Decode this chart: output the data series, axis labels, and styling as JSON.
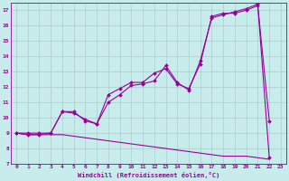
{
  "xlabel": "Windchill (Refroidissement éolien,°C)",
  "xlim": [
    -0.5,
    23.5
  ],
  "ylim": [
    7,
    17.5
  ],
  "yticks": [
    7,
    8,
    9,
    10,
    11,
    12,
    13,
    14,
    15,
    16,
    17
  ],
  "xticks": [
    0,
    1,
    2,
    3,
    4,
    5,
    6,
    7,
    8,
    9,
    10,
    11,
    12,
    13,
    14,
    15,
    16,
    17,
    18,
    19,
    20,
    21,
    22,
    23
  ],
  "bg_color": "#c8ecec",
  "grid_color": "#aacccc",
  "line_color": "#990099",
  "line1_x": [
    0,
    1,
    2,
    3,
    4,
    5,
    6,
    7,
    8,
    9,
    10,
    11,
    12,
    13,
    14,
    15,
    16,
    17,
    18,
    19,
    20,
    21,
    22
  ],
  "line1_y": [
    9.0,
    8.9,
    8.9,
    9.0,
    10.4,
    10.3,
    9.9,
    9.6,
    11.5,
    11.9,
    12.3,
    12.3,
    12.9,
    13.2,
    12.2,
    11.9,
    13.5,
    16.6,
    16.8,
    16.8,
    17.0,
    17.3,
    9.8
  ],
  "line2_x": [
    0,
    1,
    2,
    3,
    4,
    5,
    6,
    7,
    8,
    9,
    10,
    11,
    12,
    13,
    14,
    15,
    16,
    17,
    18,
    19,
    20,
    21,
    22
  ],
  "line2_y": [
    9.0,
    9.0,
    9.0,
    9.0,
    10.4,
    10.4,
    9.8,
    9.6,
    11.0,
    11.5,
    12.1,
    12.2,
    12.4,
    13.4,
    12.3,
    11.8,
    13.7,
    16.5,
    16.7,
    16.9,
    17.1,
    17.4,
    7.4
  ],
  "line3_x": [
    0,
    1,
    2,
    3,
    4,
    5,
    6,
    7,
    8,
    9,
    10,
    11,
    12,
    13,
    14,
    15,
    16,
    17,
    18,
    19,
    20,
    21,
    22
  ],
  "line3_y": [
    9.0,
    8.9,
    8.9,
    8.9,
    8.9,
    8.8,
    8.7,
    8.6,
    8.5,
    8.4,
    8.3,
    8.2,
    8.1,
    8.0,
    7.9,
    7.8,
    7.7,
    7.6,
    7.5,
    7.5,
    7.5,
    7.4,
    7.3
  ],
  "tick_fontsize": 4.5,
  "xlabel_fontsize": 5.0,
  "lw": 0.8,
  "marker_size": 2.0
}
